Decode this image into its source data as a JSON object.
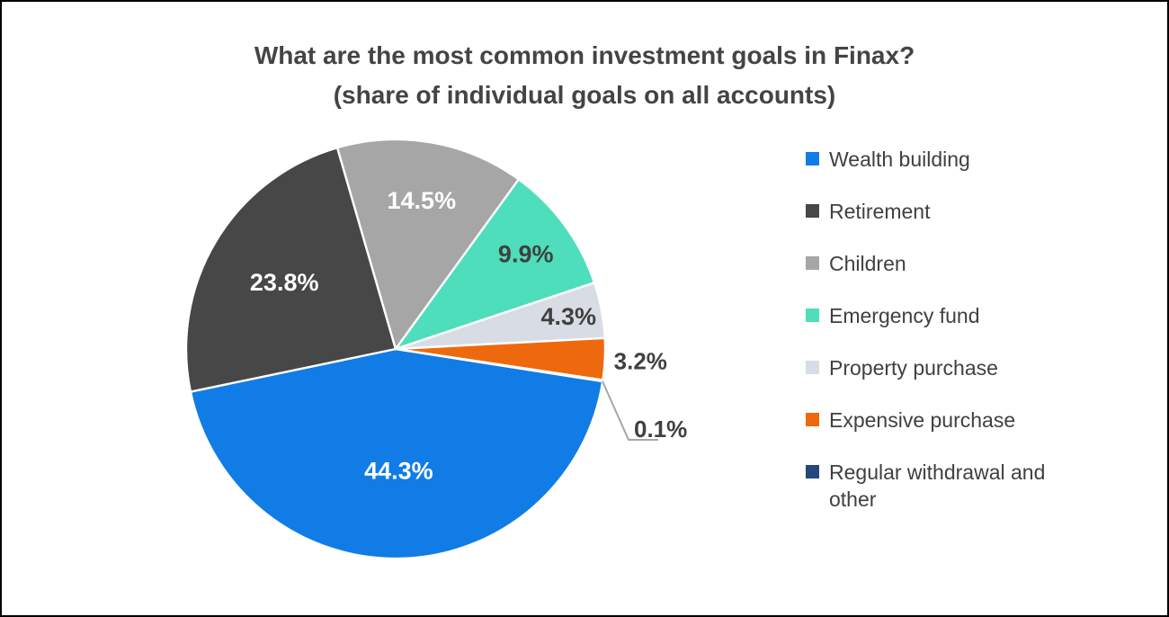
{
  "chart_data": {
    "type": "pie",
    "title": "What are the most common investment goals in Finax?",
    "subtitle": "(share of individual goals on all accounts)",
    "legend_position": "right",
    "grid": false,
    "start_angle_deg": 98.9,
    "separator_color": "#FFFFFF",
    "leader_line_color": "#A6A6A6",
    "title_color": "#444444",
    "legend_text_color": "#404040",
    "label_colors": {
      "light": "#FFFFFF",
      "dark": "#404040"
    },
    "slices": [
      {
        "label": "Wealth building",
        "value": 44.3,
        "display": "44.3%",
        "color": "#117CE6"
      },
      {
        "label": "Retirement",
        "value": 23.8,
        "display": "23.8%",
        "color": "#474747"
      },
      {
        "label": "Children",
        "value": 14.5,
        "display": "14.5%",
        "color": "#A6A6A6"
      },
      {
        "label": "Emergency fund",
        "value": 9.9,
        "display": "9.9%",
        "color": "#4EDEBC"
      },
      {
        "label": "Property purchase",
        "value": 4.3,
        "display": "4.3%",
        "color": "#D8DCE5"
      },
      {
        "label": "Expensive purchase",
        "value": 3.2,
        "display": "3.2%",
        "color": "#EE690D"
      },
      {
        "label": "Regular withdrawal and other",
        "value": 0.1,
        "display": "0.1%",
        "color": "#24477D"
      }
    ]
  }
}
